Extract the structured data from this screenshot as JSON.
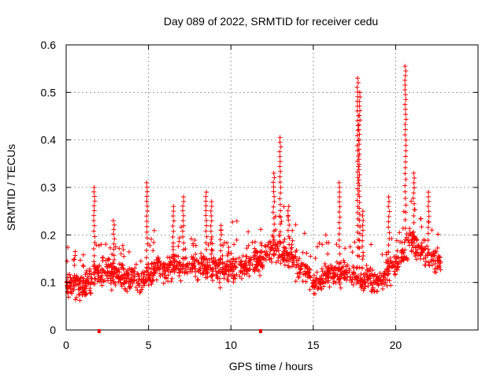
{
  "chart_data": {
    "type": "scatter",
    "title": "Day 089 of 2022, SRMTID for receiver cedu",
    "xlabel": "GPS time / hours",
    "ylabel": "SRMTID / TECUs",
    "xlim": [
      0,
      25
    ],
    "ylim": [
      0,
      0.6
    ],
    "xticks": [
      0,
      5,
      10,
      15,
      20
    ],
    "xtick_labels": [
      "0",
      "5",
      "10",
      "15",
      "20"
    ],
    "yticks": [
      0,
      0.1,
      0.2,
      0.3,
      0.4,
      0.5,
      0.6
    ],
    "ytick_labels": [
      "0",
      "0.1",
      "0.2",
      "0.3",
      "0.4",
      "0.5",
      "0.6"
    ],
    "grid": true,
    "color": "#ff0000",
    "marker": "+",
    "x_range_hours": [
      0,
      22.75
    ],
    "baseline": [
      [
        0.0,
        0.1
      ],
      [
        1.0,
        0.09
      ],
      [
        1.8,
        0.12
      ],
      [
        3.0,
        0.12
      ],
      [
        4.5,
        0.1
      ],
      [
        5.5,
        0.13
      ],
      [
        7.0,
        0.13
      ],
      [
        8.5,
        0.13
      ],
      [
        10.0,
        0.13
      ],
      [
        11.5,
        0.14
      ],
      [
        12.5,
        0.17
      ],
      [
        13.5,
        0.16
      ],
      [
        15.0,
        0.1
      ],
      [
        16.5,
        0.12
      ],
      [
        18.0,
        0.11
      ],
      [
        19.0,
        0.1
      ],
      [
        20.0,
        0.14
      ],
      [
        21.0,
        0.19
      ],
      [
        22.0,
        0.15
      ],
      [
        22.75,
        0.14
      ]
    ],
    "spikes": [
      {
        "x": 1.7,
        "y": 0.3
      },
      {
        "x": 2.9,
        "y": 0.23
      },
      {
        "x": 4.9,
        "y": 0.31
      },
      {
        "x": 6.5,
        "y": 0.26
      },
      {
        "x": 7.1,
        "y": 0.28
      },
      {
        "x": 8.5,
        "y": 0.29
      },
      {
        "x": 8.8,
        "y": 0.27
      },
      {
        "x": 9.4,
        "y": 0.22
      },
      {
        "x": 12.6,
        "y": 0.33
      },
      {
        "x": 13.0,
        "y": 0.405
      },
      {
        "x": 13.5,
        "y": 0.26
      },
      {
        "x": 16.6,
        "y": 0.31
      },
      {
        "x": 17.7,
        "y": 0.53
      },
      {
        "x": 17.8,
        "y": 0.5
      },
      {
        "x": 18.0,
        "y": 0.25
      },
      {
        "x": 19.6,
        "y": 0.28
      },
      {
        "x": 20.6,
        "y": 0.555
      },
      {
        "x": 21.1,
        "y": 0.33
      },
      {
        "x": 22.0,
        "y": 0.29
      }
    ],
    "x_axis_markers": [
      2.0,
      11.8
    ]
  }
}
